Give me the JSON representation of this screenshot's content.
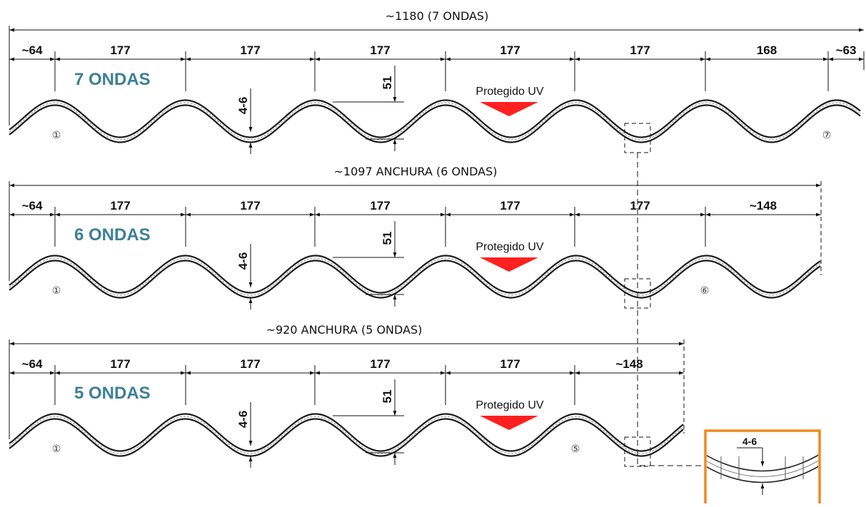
{
  "colors": {
    "waves_title": "#3d7f96",
    "uv_marker": "#ff2020",
    "detail_frame": "#f08a1c",
    "line": "#111111"
  },
  "panels": [
    {
      "width_label": "~1180 (7 ONDAS)",
      "waves_label": "7 ONDAS",
      "segments": [
        "~64",
        "177",
        "177",
        "177",
        "177",
        "177",
        "168",
        "~63"
      ],
      "height_label": "51",
      "thickness_label": "4-6",
      "uv_label": "Protegido UV",
      "first_wave_number": "①",
      "last_wave_number": "⑦"
    },
    {
      "width_label": "~1097 ANCHURA (6 ONDAS)",
      "waves_label": "6 ONDAS",
      "segments": [
        "~64",
        "177",
        "177",
        "177",
        "177",
        "177",
        "~148"
      ],
      "height_label": "51",
      "thickness_label": "4-6",
      "uv_label": "Protegido UV",
      "first_wave_number": "①",
      "last_wave_number": "⑥"
    },
    {
      "width_label": "~920 ANCHURA (5 ONDAS)",
      "waves_label": "5 ONDAS",
      "segments": [
        "~64",
        "177",
        "177",
        "177",
        "177",
        "~148"
      ],
      "height_label": "51",
      "thickness_label": "4-6",
      "uv_label": "Protegido UV",
      "first_wave_number": "①",
      "last_wave_number": "⑤"
    }
  ],
  "detail": {
    "thickness_label": "4-6"
  }
}
